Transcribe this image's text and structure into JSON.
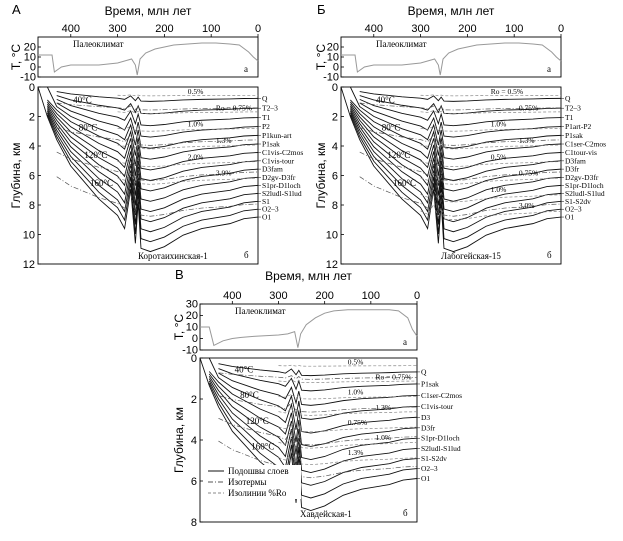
{
  "chart_data": [
    {
      "type": "line",
      "panel_letter": "А",
      "top": {
        "ylabel": "T, °C",
        "xlabel": "Время, млн лет",
        "inner_label": "Палеоклимат",
        "corner": "а",
        "xticks": [
          "400",
          "300",
          "200",
          "100",
          "0"
        ],
        "xtick_values": [
          -400,
          -300,
          -200,
          -100,
          0
        ],
        "yticks": [
          "20",
          "10",
          "0",
          "-10"
        ],
        "ytick_values": [
          20,
          10,
          0,
          -10
        ],
        "xlim": [
          -470,
          0
        ],
        "ylim": [
          -10,
          30
        ],
        "series": [
          {
            "x": [
              -470,
              -440,
              -435,
              -420,
              -400,
              -370,
              -340,
              -300,
              -285,
              -270,
              -262,
              -258,
              -252,
              -240,
              -220,
              -200,
              -180,
              -150,
              -120,
              -90,
              -60,
              -40,
              -20,
              -10,
              0
            ],
            "y": [
              12,
              12,
              -5,
              0,
              2,
              2,
              2,
              4,
              6,
              8,
              2,
              -8,
              8,
              14,
              18,
              20,
              22,
              23,
              24,
              24,
              23,
              22,
              15,
              10,
              6
            ]
          }
        ]
      },
      "bottom": {
        "ylabel": "Глубина, км",
        "corner": "б",
        "well": "Коротаихинская-1",
        "yticks": [
          "0",
          "2",
          "4",
          "6",
          "8",
          "10",
          "12"
        ],
        "ytick_values": [
          0,
          2,
          4,
          6,
          8,
          10,
          12
        ],
        "xlim": [
          -470,
          0
        ],
        "ylim": [
          0,
          12
        ],
        "stratigraphy": [
          "Q",
          "T2–3",
          "T1",
          "P2",
          "P1kun-art",
          "P1sak",
          "C1vis-C2mos",
          "C1vis-tour",
          "D3fam",
          "D2gv-D3fr",
          "S1pr-D1loch",
          "S2ludl-S1lud",
          "S1",
          "O2–3",
          "O1"
        ],
        "isotherms": [
          "40°C",
          "80°C",
          "120°C",
          "160°C"
        ],
        "ro_labels": [
          "0.5%",
          "Ro = 0.75%",
          "1.0%",
          "1.3%",
          "2.0%",
          "3.9%"
        ]
      }
    },
    {
      "type": "line",
      "panel_letter": "Б",
      "top": {
        "ylabel": "T, °C",
        "xlabel": "Время, млн лет",
        "inner_label": "Палеоклимат",
        "corner": "а",
        "xticks": [
          "400",
          "300",
          "200",
          "100",
          "0"
        ],
        "xtick_values": [
          -400,
          -300,
          -200,
          -100,
          0
        ],
        "yticks": [
          "20",
          "10",
          "0",
          "-10"
        ],
        "ytick_values": [
          20,
          10,
          0,
          -10
        ],
        "xlim": [
          -470,
          0
        ],
        "ylim": [
          -10,
          30
        ],
        "series": [
          {
            "x": [
              -470,
              -440,
              -435,
              -420,
              -400,
              -370,
              -340,
              -300,
              -285,
              -270,
              -262,
              -258,
              -252,
              -240,
              -220,
              -200,
              -180,
              -150,
              -120,
              -90,
              -60,
              -40,
              -20,
              -10,
              0
            ],
            "y": [
              12,
              12,
              -5,
              0,
              2,
              2,
              2,
              4,
              6,
              8,
              2,
              -8,
              8,
              14,
              18,
              20,
              22,
              23,
              24,
              24,
              23,
              22,
              15,
              10,
              6
            ]
          }
        ]
      },
      "bottom": {
        "ylabel": "Глубина, км",
        "corner": "б",
        "well": "Лабогейская-15",
        "yticks": [
          "0",
          "2",
          "4",
          "6",
          "8",
          "10",
          "12"
        ],
        "ytick_values": [
          0,
          2,
          4,
          6,
          8,
          10,
          12
        ],
        "xlim": [
          -470,
          0
        ],
        "ylim": [
          0,
          12
        ],
        "stratigraphy": [
          "Q",
          "T2–3",
          "T1",
          "P1art-P2",
          "P1sak",
          "C1ser-C2mos",
          "C1tour-vis",
          "D3fam",
          "D3fr",
          "D2gv-D3fr",
          "S1pr-D1loch",
          "S2ludl-S1lud",
          "S1-S2dv",
          "O2–3",
          "O1"
        ],
        "isotherms": [
          "40°C",
          "80°C",
          "120°C",
          "160°C"
        ],
        "ro_labels": [
          "Ro = 0.5%",
          "0.75%",
          "1.0%",
          "1.3%",
          "0.5%",
          "0.75%",
          "1.0%",
          "3.0%"
        ]
      }
    },
    {
      "type": "line",
      "panel_letter": "В",
      "top": {
        "ylabel": "T, °C",
        "xlabel": "Время, млн лет",
        "inner_label": "Палеоклимат",
        "corner": "а",
        "xticks": [
          "400",
          "300",
          "200",
          "100",
          "0"
        ],
        "xtick_values": [
          -400,
          -300,
          -200,
          -100,
          0
        ],
        "yticks": [
          "30",
          "20",
          "10",
          "0",
          "-10"
        ],
        "ytick_values": [
          30,
          20,
          10,
          0,
          -10
        ],
        "xlim": [
          -470,
          0
        ],
        "ylim": [
          -10,
          30
        ],
        "series": [
          {
            "x": [
              -470,
              -450,
              -440,
              -420,
              -400,
              -380,
              -350,
              -300,
              -280,
              -265,
              -258,
              -252,
              -240,
              -220,
              -200,
              -180,
              -150,
              -120,
              -90,
              -60,
              -40,
              -20,
              -10,
              0
            ],
            "y": [
              10,
              10,
              -6,
              -2,
              0,
              1,
              2,
              3,
              4,
              6,
              -8,
              4,
              12,
              18,
              22,
              24,
              25,
              25,
              25,
              25,
              24,
              18,
              8,
              2
            ]
          }
        ]
      },
      "bottom": {
        "ylabel": "Глубина, км",
        "corner": "б",
        "well": "Хавдейская-1",
        "yticks": [
          "0",
          "2",
          "4",
          "6",
          "8"
        ],
        "ytick_values": [
          0,
          2,
          4,
          6,
          8
        ],
        "xlim": [
          -470,
          0
        ],
        "ylim": [
          0,
          8
        ],
        "stratigraphy": [
          "Q",
          "P1sak",
          "C1ser-C2mos",
          "C1vis-tour",
          "D3",
          "D3fr",
          "S1pr-D1loch",
          "S2ludl-S1lud",
          "S1-S2dv",
          "O2–3",
          "O1"
        ],
        "isotherms": [
          "40°C",
          "80°C",
          "120°C",
          "160°C"
        ],
        "ro_labels": [
          "0.5%",
          "Ro = 0.75%",
          "1.0%",
          "1.3%",
          "0.75%",
          "1.0%",
          "1.3%"
        ],
        "legend": [
          "Подошвы слоев",
          "Изотермы",
          "Изолинии %Ro"
        ]
      }
    }
  ]
}
